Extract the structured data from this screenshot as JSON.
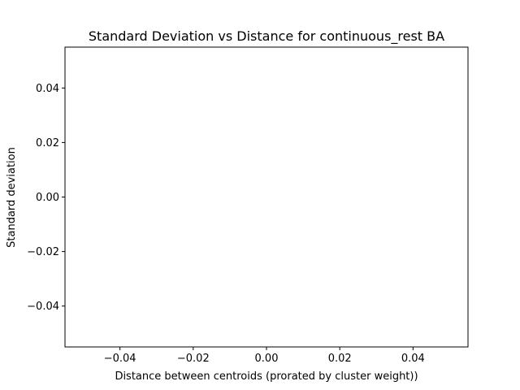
{
  "chart_data": {
    "type": "scatter",
    "title": "Standard Deviation vs Distance for continuous_rest BA",
    "xlabel": "Distance between centroids (prorated by cluster weight))",
    "ylabel": "Standard deviation",
    "xlim": [
      -0.055,
      0.055
    ],
    "ylim": [
      -0.055,
      0.055
    ],
    "xticks": [
      -0.04,
      -0.02,
      0.0,
      0.02,
      0.04
    ],
    "yticks": [
      -0.04,
      -0.02,
      0.0,
      0.02,
      0.04
    ],
    "xtick_labels": [
      "−0.04",
      "−0.02",
      "0.00",
      "0.02",
      "0.04"
    ],
    "ytick_labels": [
      "−0.04",
      "−0.02",
      "0.00",
      "0.02",
      "0.04"
    ],
    "grid": false,
    "series": [
      {
        "x": [],
        "y": []
      }
    ]
  }
}
